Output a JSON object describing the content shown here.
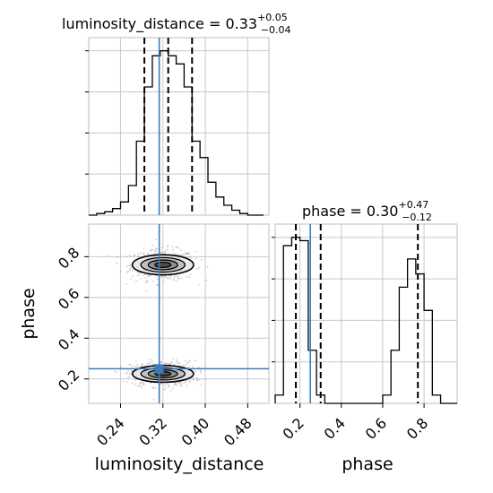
{
  "chart_data": {
    "type": "corner",
    "grid": true,
    "colors": {
      "hist": "#000000",
      "truth": "#3b7bbf",
      "scatter": "#999999",
      "grid": "#c8c8c8",
      "frame": "#bcbcbc"
    },
    "parameters": [
      "luminosity_distance",
      "phase"
    ],
    "truths": {
      "luminosity_distance": 0.313,
      "phase": 0.25
    },
    "panels": [
      {
        "id": "hist-luminosity_distance",
        "type": "histogram",
        "parameter": "luminosity_distance",
        "title": {
          "prefix": "luminosity_distance = 0.33",
          "plus": "+0.05",
          "minus": "−0.04"
        },
        "quantiles": [
          0.285,
          0.33,
          0.375
        ],
        "xlim": [
          0.18,
          0.52
        ],
        "ylim": [
          0,
          1.08
        ],
        "bin_edges": [
          0.18,
          0.195,
          0.21,
          0.225,
          0.24,
          0.255,
          0.27,
          0.285,
          0.3,
          0.315,
          0.33,
          0.345,
          0.36,
          0.375,
          0.39,
          0.405,
          0.42,
          0.435,
          0.45,
          0.465,
          0.48,
          0.495,
          0.51
        ],
        "counts": [
          0,
          0.01,
          0.02,
          0.04,
          0.08,
          0.18,
          0.45,
          0.78,
          0.97,
          1.0,
          0.97,
          0.92,
          0.78,
          0.45,
          0.35,
          0.2,
          0.11,
          0.06,
          0.03,
          0.01,
          0,
          0
        ]
      },
      {
        "id": "hist-phase",
        "type": "histogram",
        "parameter": "phase",
        "title": {
          "prefix": "phase = 0.30",
          "plus": "+0.47",
          "minus": "−0.12"
        },
        "quantiles": [
          0.18,
          0.3,
          0.77
        ],
        "xlim": [
          0.08,
          0.96
        ],
        "ylim": [
          0,
          1.08
        ],
        "xticks": [
          0.2,
          0.4,
          0.6,
          0.8
        ],
        "xticklabels": [
          "0.2",
          "0.4",
          "0.6",
          "0.8"
        ],
        "xlabel": "phase",
        "bin_edges": [
          0.08,
          0.12,
          0.16,
          0.2,
          0.24,
          0.28,
          0.32,
          0.36,
          0.4,
          0.44,
          0.48,
          0.52,
          0.56,
          0.6,
          0.64,
          0.68,
          0.72,
          0.76,
          0.8,
          0.84,
          0.88,
          0.92,
          0.96
        ],
        "counts": [
          0.05,
          0.95,
          1.0,
          0.98,
          0.32,
          0.05,
          0,
          0,
          0,
          0,
          0,
          0,
          0,
          0.05,
          0.32,
          0.7,
          0.87,
          0.78,
          0.56,
          0.05,
          0,
          0
        ]
      },
      {
        "id": "joint-luminosity_distance-phase",
        "type": "2d",
        "x": "luminosity_distance",
        "y": "phase",
        "xlim": [
          0.18,
          0.52
        ],
        "ylim": [
          0.08,
          0.96
        ],
        "xticks": [
          0.24,
          0.32,
          0.4,
          0.48
        ],
        "xticklabels": [
          "0.24",
          "0.32",
          "0.40",
          "0.48"
        ],
        "yticks": [
          0.2,
          0.4,
          0.6,
          0.8
        ],
        "yticklabels": [
          "0.2",
          "0.4",
          "0.6",
          "0.8"
        ],
        "xlabel": "luminosity_distance",
        "ylabel": "phase",
        "clusters": [
          {
            "cx": 0.32,
            "cy": 0.76,
            "sx": 0.055,
            "sy": 0.09
          },
          {
            "cx": 0.32,
            "cy": 0.225,
            "sx": 0.055,
            "sy": 0.075
          }
        ]
      }
    ]
  }
}
